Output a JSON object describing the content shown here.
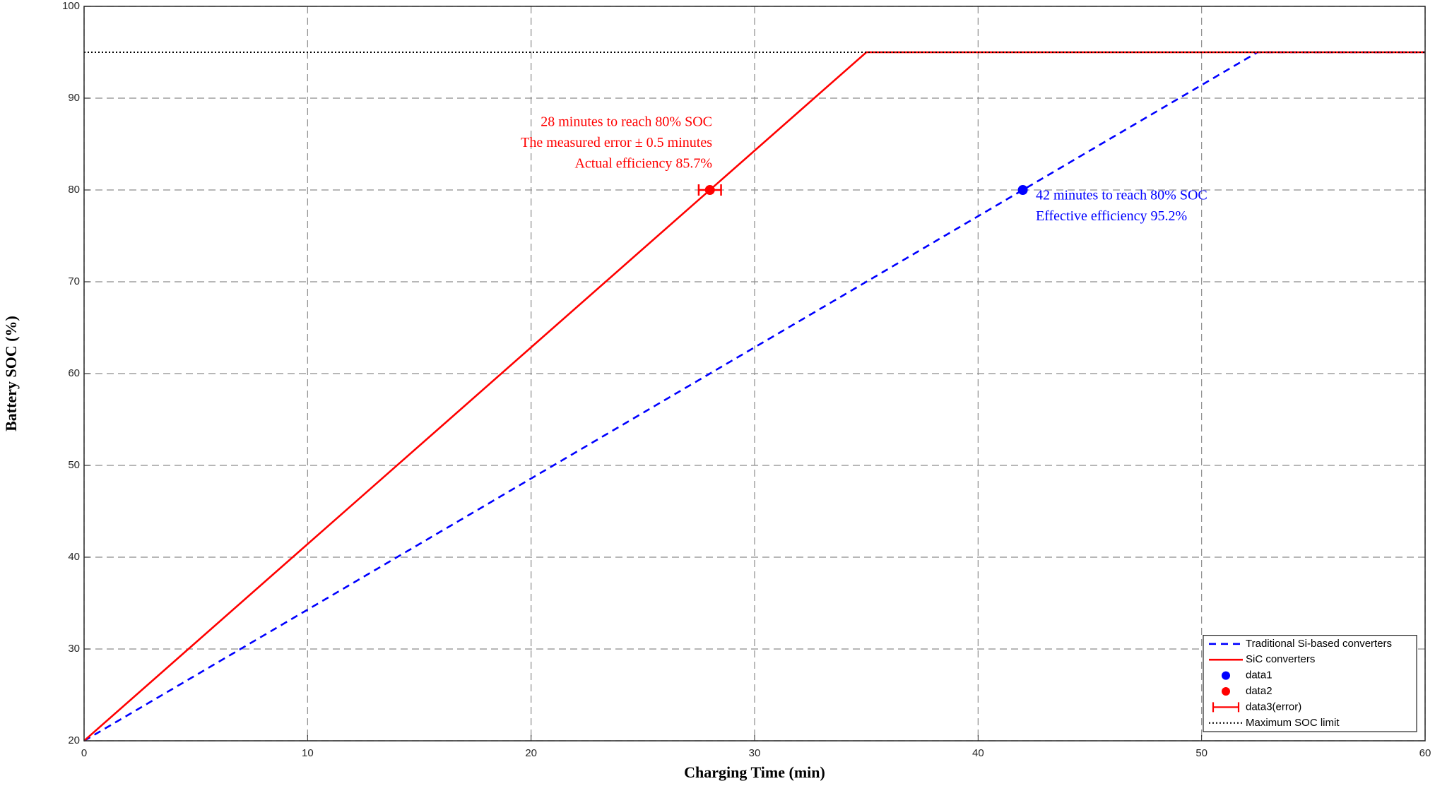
{
  "chart_data": {
    "type": "line",
    "xlabel": "Charging Time (min)",
    "ylabel": "Battery SOC (%)",
    "xlim": [
      0,
      60
    ],
    "ylim": [
      20,
      100
    ],
    "xticks": [
      0,
      10,
      20,
      30,
      40,
      50,
      60
    ],
    "yticks": [
      20,
      30,
      40,
      50,
      60,
      70,
      80,
      90,
      100
    ],
    "grid": true,
    "legend": "lower right",
    "series": [
      {
        "name": "Traditional Si-based converters",
        "color": "#0000ff",
        "style": "dashed",
        "x": [
          0,
          52.5,
          60
        ],
        "values": [
          20,
          95,
          95
        ]
      },
      {
        "name": "SiC converters",
        "color": "#ff0000",
        "style": "solid",
        "x": [
          0,
          35,
          60
        ],
        "values": [
          20,
          95,
          95
        ]
      },
      {
        "name": "data1",
        "color": "#0000ff",
        "style": "marker",
        "x": [
          42
        ],
        "values": [
          80
        ]
      },
      {
        "name": "data2",
        "color": "#ff0000",
        "style": "marker",
        "x": [
          28
        ],
        "values": [
          80
        ]
      },
      {
        "name": "data3(error)",
        "color": "#ff0000",
        "style": "errorbar",
        "x": [
          28
        ],
        "values": [
          80
        ],
        "xerr": [
          0.5
        ]
      },
      {
        "name": "Maximum SOC limit",
        "color": "#000000",
        "style": "dotted",
        "x": [
          0,
          60
        ],
        "values": [
          95,
          95
        ]
      }
    ],
    "annotations": [
      {
        "color": "#ff0000",
        "lines": [
          "28 minutes to reach 80% SOC",
          "The measured error ± 0.5 minutes",
          "Actual efficiency 85.7%"
        ]
      },
      {
        "color": "#0000ff",
        "lines": [
          "42 minutes to reach 80% SOC",
          "Effective efficiency 95.2%"
        ]
      }
    ]
  }
}
